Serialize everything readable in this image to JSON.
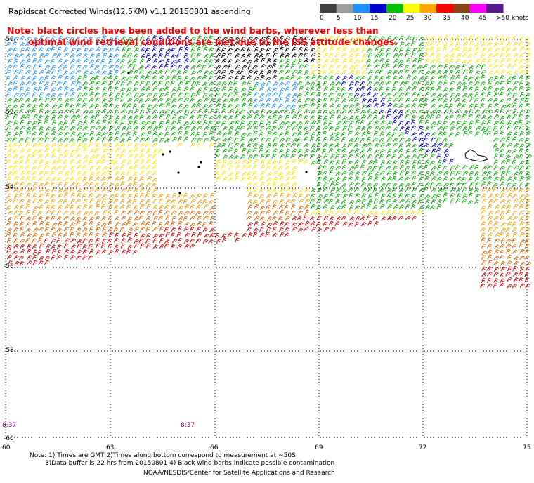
{
  "title": "Rapidscat Corrected Winds(12.5KM) v1.1 20150801 ascending",
  "note_lines": [
    "Note: black circles have been added to the wind barbs, wherever less than",
    "optimal wind retrieval conditions are met due to the ISS attitude changes."
  ],
  "color_scale": {
    "labels": [
      "0",
      "5",
      "10",
      "15",
      "20",
      "25",
      "30",
      "35",
      "40",
      "45",
      ">50 knots"
    ],
    "colors": [
      "#404040",
      "#9e9e9e",
      "#1e90ff",
      "#0000cd",
      "#00c000",
      "#ffff00",
      "#ffa500",
      "#ff0000",
      "#8b4513",
      "#ff00ff",
      "#551a8b"
    ]
  },
  "map": {
    "lat_labels": [
      "-50",
      "-52",
      "-54",
      "-56",
      "-58",
      "-60"
    ],
    "lon_labels": [
      "60",
      "63",
      "66",
      "69",
      "72",
      "75"
    ],
    "lat_range": [
      -60,
      -50
    ],
    "lon_range": [
      60,
      75
    ],
    "time_labels": [
      "8:37",
      "8:37"
    ]
  },
  "footer": {
    "line1": "Note: 1) Times are GMT 2)Times along bottom correspond to measurement at ~50S",
    "line2": "3)Data buffer is 22 hrs from 20150801 4) Black wind barbs indicate possible contamination",
    "line3": "NOAA/NESDIS/Center for Satellite Applications and Research"
  }
}
